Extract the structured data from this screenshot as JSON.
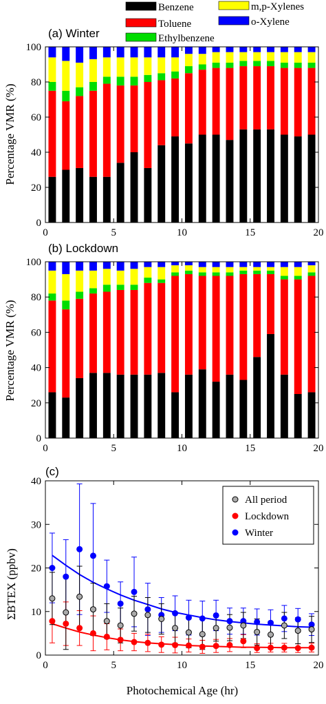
{
  "legend": {
    "items": [
      {
        "label": "Benzene",
        "color": "#000000"
      },
      {
        "label": "m,p-Xylenes",
        "color": "#ffff00"
      },
      {
        "label": "Toluene",
        "color": "#ff0000"
      },
      {
        "label": "o-Xylene",
        "color": "#0000ff"
      },
      {
        "label": "Ethylbenzene",
        "color": "#00dd00"
      }
    ]
  },
  "chart_data": [
    {
      "type": "bar",
      "stacked": true,
      "panel_label": "(a) Winter",
      "ylabel": "Percentage VMR (%)",
      "xlabel": "",
      "xlim": [
        0,
        20
      ],
      "ylim": [
        0,
        100
      ],
      "xticks": [
        "0",
        "5",
        "10",
        "15",
        "20"
      ],
      "yticks": [
        "0",
        "20",
        "40",
        "60",
        "80",
        "100"
      ],
      "x": [
        0.5,
        1.5,
        2.5,
        3.5,
        4.5,
        5.5,
        6.5,
        7.5,
        8.5,
        9.5,
        10.5,
        11.5,
        12.5,
        13.5,
        14.5,
        15.5,
        16.5,
        17.5,
        18.5,
        19.5
      ],
      "series": [
        {
          "name": "Benzene",
          "color": "#000000",
          "values": [
            26,
            30,
            31,
            26,
            26,
            34,
            40,
            31,
            44,
            49,
            45,
            50,
            50,
            47,
            53,
            53,
            53,
            50,
            49,
            50
          ]
        },
        {
          "name": "Toluene",
          "color": "#ff0000",
          "values": [
            49,
            39,
            41,
            49,
            53,
            44,
            38,
            49,
            37,
            33,
            40,
            37,
            38,
            41,
            36,
            36,
            36,
            38,
            39,
            38
          ]
        },
        {
          "name": "Ethylbenzene",
          "color": "#00dd00",
          "values": [
            5,
            6,
            5,
            5,
            4,
            5,
            5,
            4,
            4,
            4,
            4,
            3,
            3,
            3,
            3,
            3,
            3,
            3,
            3,
            3
          ]
        },
        {
          "name": "m,p-Xylenes",
          "color": "#ffff00",
          "values": [
            14,
            17,
            14,
            13,
            11,
            11,
            11,
            10,
            9,
            8,
            7,
            6,
            6,
            6,
            5,
            5,
            5,
            6,
            6,
            6
          ]
        },
        {
          "name": "o-Xylene",
          "color": "#0000ff",
          "values": [
            6,
            8,
            9,
            7,
            6,
            6,
            6,
            6,
            6,
            6,
            4,
            4,
            3,
            3,
            3,
            3,
            3,
            3,
            3,
            3
          ]
        }
      ]
    },
    {
      "type": "bar",
      "stacked": true,
      "panel_label": "(b) Lockdown",
      "ylabel": "Percentage VMR (%)",
      "xlabel": "",
      "xlim": [
        0,
        20
      ],
      "ylim": [
        0,
        100
      ],
      "xticks": [
        "0",
        "5",
        "10",
        "15",
        "20"
      ],
      "yticks": [
        "0",
        "20",
        "40",
        "60",
        "80",
        "100"
      ],
      "x": [
        0.5,
        1.5,
        2.5,
        3.5,
        4.5,
        5.5,
        6.5,
        7.5,
        8.5,
        9.5,
        10.5,
        11.5,
        12.5,
        13.5,
        14.5,
        15.5,
        16.5,
        17.5,
        18.5,
        19.5
      ],
      "series": [
        {
          "name": "Benzene",
          "color": "#000000",
          "values": [
            26,
            23,
            34,
            37,
            37,
            36,
            36,
            36,
            37,
            26,
            36,
            39,
            32,
            36,
            33,
            46,
            59,
            36,
            25,
            26
          ]
        },
        {
          "name": "Toluene",
          "color": "#ff0000",
          "values": [
            52,
            50,
            45,
            45,
            46,
            48,
            48,
            52,
            51,
            66,
            57,
            53,
            60,
            56,
            60,
            47,
            34,
            54,
            65,
            66
          ]
        },
        {
          "name": "Ethylbenzene",
          "color": "#00dd00",
          "values": [
            4,
            5,
            4,
            3,
            4,
            3,
            3,
            3,
            2,
            2,
            2,
            2,
            2,
            2,
            2,
            2,
            2,
            2,
            2,
            2
          ]
        },
        {
          "name": "m,p-Xylenes",
          "color": "#ffff00",
          "values": [
            13,
            15,
            12,
            10,
            9,
            8,
            9,
            6,
            7,
            4,
            3,
            3,
            3,
            3,
            2,
            2,
            2,
            5,
            5,
            4
          ]
        },
        {
          "name": "o-Xylene",
          "color": "#0000ff",
          "values": [
            5,
            7,
            5,
            5,
            4,
            5,
            4,
            3,
            3,
            2,
            2,
            3,
            3,
            3,
            3,
            3,
            3,
            3,
            3,
            2
          ]
        }
      ]
    },
    {
      "type": "scatter",
      "panel_label": "(c)",
      "ylabel": "ΣBTEX (ppbv)",
      "xlabel": "Photochemical Age (hr)",
      "xlim": [
        0,
        20
      ],
      "ylim": [
        0,
        40
      ],
      "xticks": [
        "0",
        "5",
        "10",
        "15",
        "20"
      ],
      "yticks": [
        "0",
        "10",
        "20",
        "30",
        "40"
      ],
      "legend_position": "top-right",
      "x": [
        0.5,
        1.5,
        2.5,
        3.5,
        4.5,
        5.5,
        6.5,
        7.5,
        8.5,
        9.5,
        10.5,
        11.5,
        12.5,
        13.5,
        14.5,
        15.5,
        16.5,
        17.5,
        18.5,
        19.5
      ],
      "series": [
        {
          "name": "Winter",
          "color": "#0000ff",
          "marker": "filled",
          "values": [
            20,
            18,
            24.3,
            22.8,
            15.8,
            11.8,
            14.5,
            10.5,
            9.2,
            9.6,
            8.6,
            8.4,
            9.1,
            7.8,
            7.8,
            7.6,
            7.4,
            8.4,
            8.2,
            7
          ],
          "err": [
            8,
            8.5,
            15,
            12,
            6,
            5,
            8,
            6,
            4,
            4,
            4,
            4,
            3.5,
            3,
            3,
            3,
            3,
            3,
            2.5,
            2.5
          ],
          "fit": [
            22.9,
            20.6,
            18.5,
            16.7,
            15.2,
            13.8,
            12.6,
            11.6,
            10.6,
            9.8,
            9.2,
            8.6,
            8.1,
            7.7,
            7.4,
            7.1,
            6.9,
            6.7,
            6.5,
            6.4
          ]
        },
        {
          "name": "Lockdown",
          "color": "#ff0000",
          "marker": "filled",
          "values": [
            7.8,
            7.2,
            6.2,
            5,
            4.2,
            3.5,
            3,
            2.8,
            2.4,
            2.3,
            2.2,
            1.9,
            2.1,
            2.3,
            3.2,
            1.6,
            1.7,
            1.7,
            1.6,
            1.7
          ],
          "err": [
            5,
            5,
            4,
            4,
            3,
            2.5,
            2,
            2,
            1.8,
            1.8,
            1.5,
            1.5,
            1.5,
            1.5,
            1.5,
            1,
            1,
            1,
            1,
            1
          ],
          "fit": [
            7.2,
            6.2,
            5.3,
            4.6,
            4,
            3.5,
            3.1,
            2.8,
            2.6,
            2.4,
            2.2,
            2.1,
            2,
            1.9,
            1.8,
            1.8,
            1.75,
            1.7,
            1.7,
            1.7
          ]
        },
        {
          "name": "All period",
          "color": "#aaaaaa",
          "marker": "open",
          "values": [
            13,
            9.8,
            13.4,
            10.5,
            7.8,
            6.8,
            9.5,
            9.2,
            8.3,
            6.2,
            5.2,
            4.8,
            6.2,
            6.3,
            6.8,
            5.3,
            4.7,
            6.8,
            5.6,
            5.9
          ],
          "err": [
            6,
            8.5,
            7,
            6,
            4,
            4,
            4,
            4,
            3.5,
            3.5,
            3.5,
            3.5,
            3,
            3,
            3,
            3,
            3,
            3,
            3,
            3
          ]
        }
      ]
    }
  ]
}
